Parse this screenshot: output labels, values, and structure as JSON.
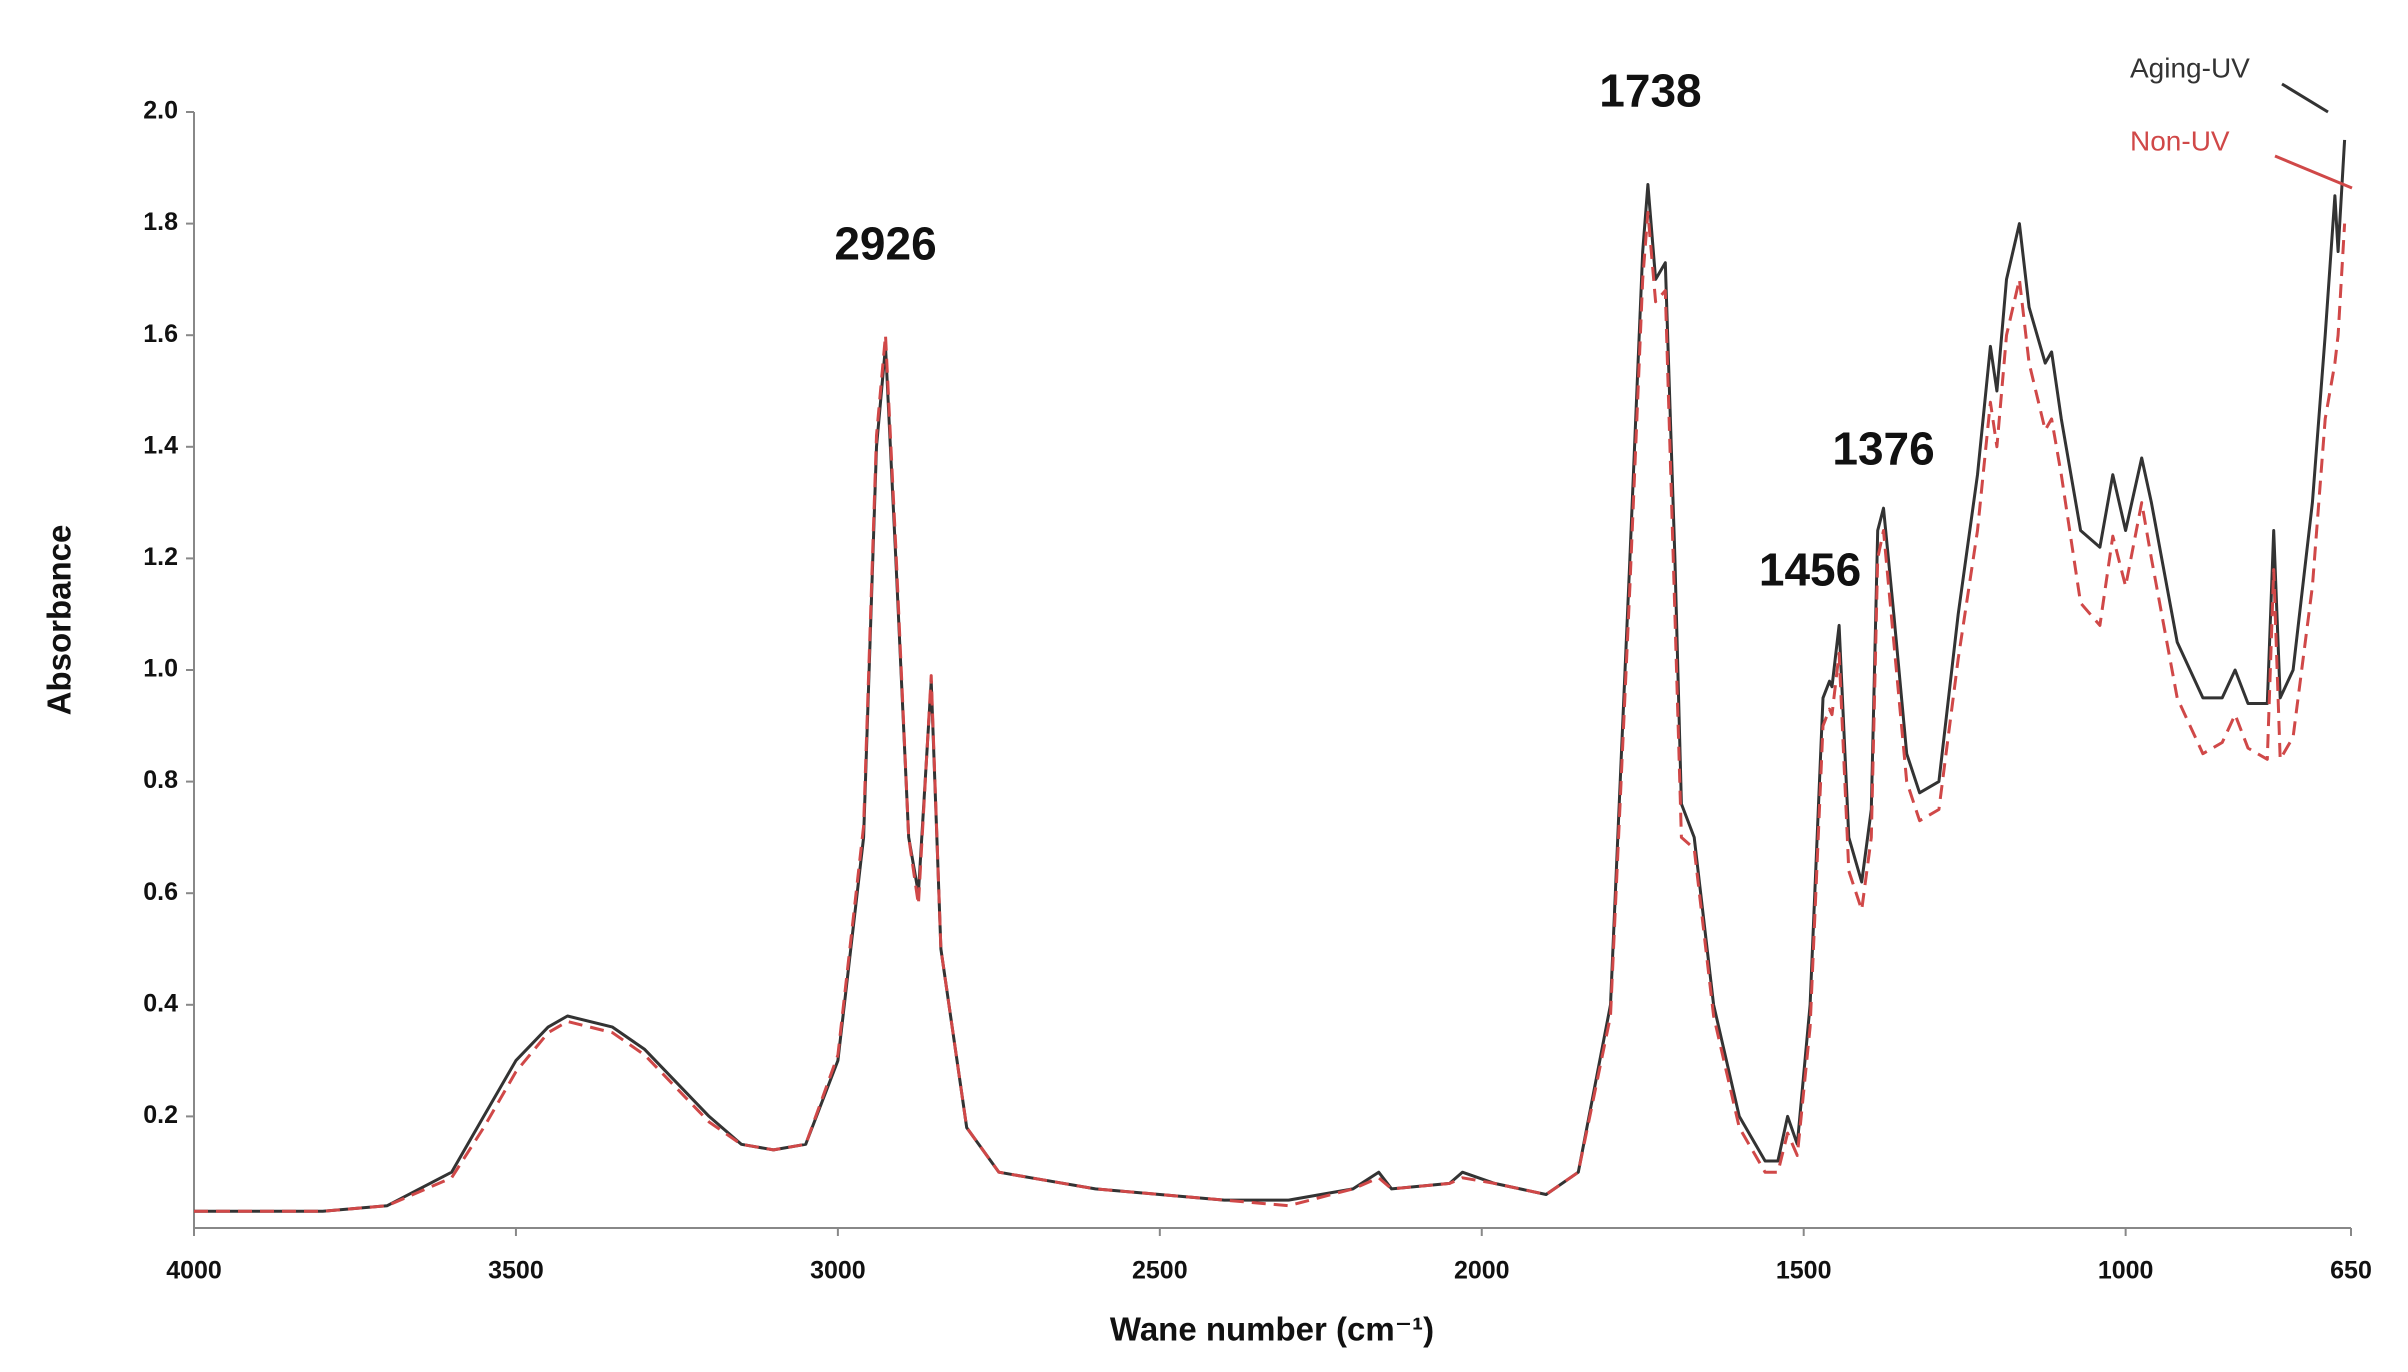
{
  "chart_data": {
    "type": "line",
    "x_label": "Wane number (cm⁻¹)",
    "y_label": "Absorbance",
    "xlim": [
      4000,
      650
    ],
    "ylim": [
      0,
      2.0
    ],
    "xticks": [
      4000,
      3500,
      3000,
      2500,
      2000,
      1500,
      1000,
      650
    ],
    "yticks": [
      0.2,
      0.4,
      0.6,
      0.8,
      {
        "value": 1.0,
        "label": "1.0"
      },
      1.2,
      1.4,
      1.6,
      1.8,
      {
        "value": 2.0,
        "label": "2.0"
      }
    ],
    "annotations": [
      "2926",
      "1738",
      "1456",
      "1376"
    ],
    "x": [
      4000,
      3800,
      3700,
      3600,
      3550,
      3500,
      3450,
      3420,
      3350,
      3300,
      3250,
      3200,
      3150,
      3100,
      3050,
      3000,
      2960,
      2940,
      2926,
      2910,
      2890,
      2875,
      2855,
      2840,
      2800,
      2750,
      2700,
      2600,
      2500,
      2400,
      2300,
      2200,
      2160,
      2140,
      2050,
      2030,
      1980,
      1900,
      1850,
      1800,
      1770,
      1750,
      1742,
      1730,
      1715,
      1700,
      1690,
      1670,
      1640,
      1600,
      1560,
      1540,
      1525,
      1510,
      1490,
      1470,
      1460,
      1456,
      1445,
      1430,
      1410,
      1395,
      1385,
      1376,
      1360,
      1340,
      1320,
      1290,
      1260,
      1230,
      1210,
      1200,
      1185,
      1165,
      1150,
      1125,
      1115,
      1100,
      1070,
      1040,
      1020,
      1000,
      975,
      960,
      920,
      880,
      850,
      830,
      810,
      780,
      770,
      760,
      740,
      710,
      690,
      675,
      670,
      660
    ],
    "series": [
      {
        "name": "Aging-UV",
        "color": "#333333",
        "line_style": "solid",
        "values": [
          0.03,
          0.03,
          0.04,
          0.1,
          0.2,
          0.3,
          0.36,
          0.38,
          0.36,
          0.32,
          0.26,
          0.2,
          0.15,
          0.14,
          0.15,
          0.3,
          0.7,
          1.4,
          1.58,
          1.2,
          0.7,
          0.6,
          0.98,
          0.5,
          0.18,
          0.1,
          0.09,
          0.07,
          0.06,
          0.05,
          0.05,
          0.07,
          0.1,
          0.07,
          0.08,
          0.1,
          0.08,
          0.06,
          0.1,
          0.4,
          1.2,
          1.75,
          1.87,
          1.7,
          1.73,
          1.2,
          0.76,
          0.7,
          0.4,
          0.2,
          0.12,
          0.12,
          0.2,
          0.15,
          0.4,
          0.95,
          0.98,
          0.97,
          1.08,
          0.7,
          0.62,
          0.75,
          1.25,
          1.29,
          1.1,
          0.85,
          0.78,
          0.8,
          1.1,
          1.35,
          1.58,
          1.5,
          1.7,
          1.8,
          1.65,
          1.55,
          1.57,
          1.45,
          1.25,
          1.22,
          1.35,
          1.25,
          1.38,
          1.3,
          1.05,
          0.95,
          0.95,
          1.0,
          0.94,
          0.94,
          1.25,
          0.95,
          1.0,
          1.3,
          1.6,
          1.85,
          1.75,
          1.95
        ]
      },
      {
        "name": "Non-UV",
        "color": "#d04848",
        "line_style": "dashed",
        "values": [
          0.03,
          0.03,
          0.04,
          0.09,
          0.18,
          0.28,
          0.35,
          0.37,
          0.35,
          0.31,
          0.25,
          0.19,
          0.15,
          0.14,
          0.15,
          0.31,
          0.72,
          1.42,
          1.6,
          1.22,
          0.7,
          0.58,
          0.99,
          0.5,
          0.18,
          0.1,
          0.09,
          0.07,
          0.06,
          0.05,
          0.04,
          0.07,
          0.09,
          0.07,
          0.08,
          0.09,
          0.08,
          0.06,
          0.1,
          0.38,
          1.15,
          1.7,
          1.82,
          1.66,
          1.68,
          1.1,
          0.7,
          0.68,
          0.38,
          0.18,
          0.1,
          0.1,
          0.17,
          0.13,
          0.36,
          0.9,
          0.93,
          0.92,
          1.03,
          0.64,
          0.57,
          0.7,
          1.2,
          1.25,
          1.05,
          0.8,
          0.73,
          0.75,
          1.02,
          1.25,
          1.48,
          1.4,
          1.6,
          1.7,
          1.55,
          1.43,
          1.45,
          1.35,
          1.12,
          1.08,
          1.24,
          1.15,
          1.3,
          1.2,
          0.95,
          0.85,
          0.87,
          0.92,
          0.86,
          0.84,
          1.18,
          0.84,
          0.88,
          1.15,
          1.45,
          1.55,
          1.6,
          1.8
        ]
      }
    ]
  }
}
